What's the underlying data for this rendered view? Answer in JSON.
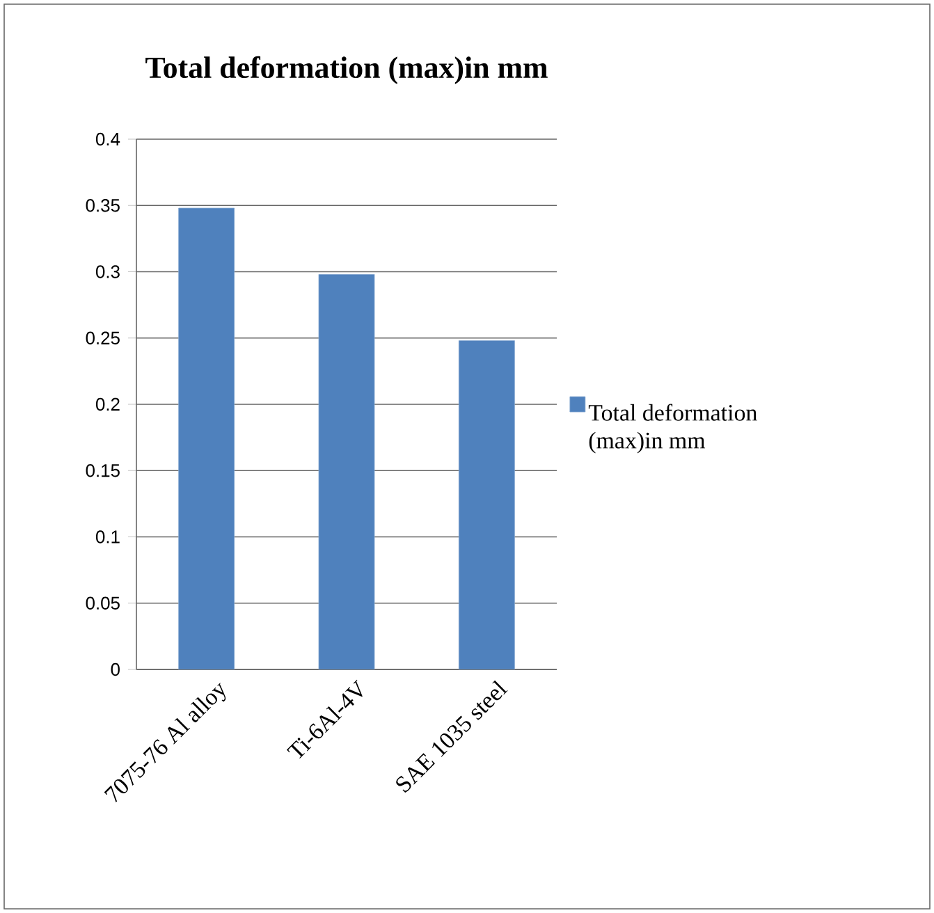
{
  "chart_data": {
    "type": "bar",
    "title": "Total deformation (max)in mm",
    "categories": [
      "7075-76 Al alloy",
      "Ti-6Al-4V",
      "SAE 1035 steel"
    ],
    "series": [
      {
        "name": "Total deformation (max)in mm",
        "color": "#4f81bd",
        "values": [
          0.348,
          0.298,
          0.248
        ]
      }
    ],
    "ylim": [
      0,
      0.4
    ],
    "yticks": [
      0,
      0.05,
      0.1,
      0.15,
      0.2,
      0.25,
      0.3,
      0.35,
      0.4
    ],
    "grid": "y",
    "legend": "right"
  }
}
